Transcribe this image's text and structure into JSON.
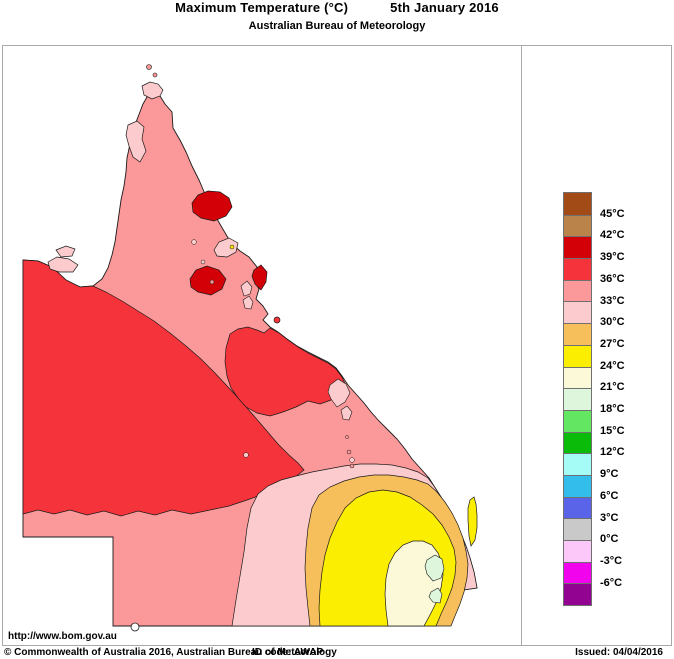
{
  "header": {
    "title": "Maximum Temperature (°C)",
    "date": "5th January 2016",
    "subtitle": "Australian Bureau of Meteorology"
  },
  "footer": {
    "url": "http://www.bom.gov.au",
    "copyright": "© Commonwealth of Australia 2016, Australian Bureau of Meteorology",
    "id_code": "ID code: AWAP",
    "issued": "Issued: 04/04/2016"
  },
  "legend": {
    "unit": "°C",
    "labels": [
      "45°C",
      "42°C",
      "39°C",
      "36°C",
      "33°C",
      "30°C",
      "27°C",
      "24°C",
      "21°C",
      "18°C",
      "15°C",
      "12°C",
      "9°C",
      "6°C",
      "3°C",
      "0°C",
      "-3°C",
      "-6°C"
    ],
    "cell_colors": [
      "#A34B16",
      "#B98349",
      "#D40008",
      "#F5333A",
      "#FB9899",
      "#FCCBCD",
      "#F7BF5C",
      "#FCEE00",
      "#FCF9D8",
      "#DDF6DC",
      "#63E763",
      "#0ABB0A",
      "#A5FBF6",
      "#33BDEB",
      "#5A64E8",
      "#C9C9C9",
      "#FCC8FA",
      "#F203EE",
      "#910390"
    ]
  },
  "map": {
    "ocean_color": "#FFFFFF",
    "outline_color": "#1a1a1a",
    "region_fills": {
      "t39_42": "#D40008",
      "t36_39": "#F5333A",
      "t33_36": "#FB9899",
      "t30_33": "#FCCBCD",
      "t27_30": "#F7BF5C",
      "t24_27": "#FCEE00",
      "t21_24": "#FCF9D8",
      "t18_21": "#DDF6DC"
    }
  }
}
